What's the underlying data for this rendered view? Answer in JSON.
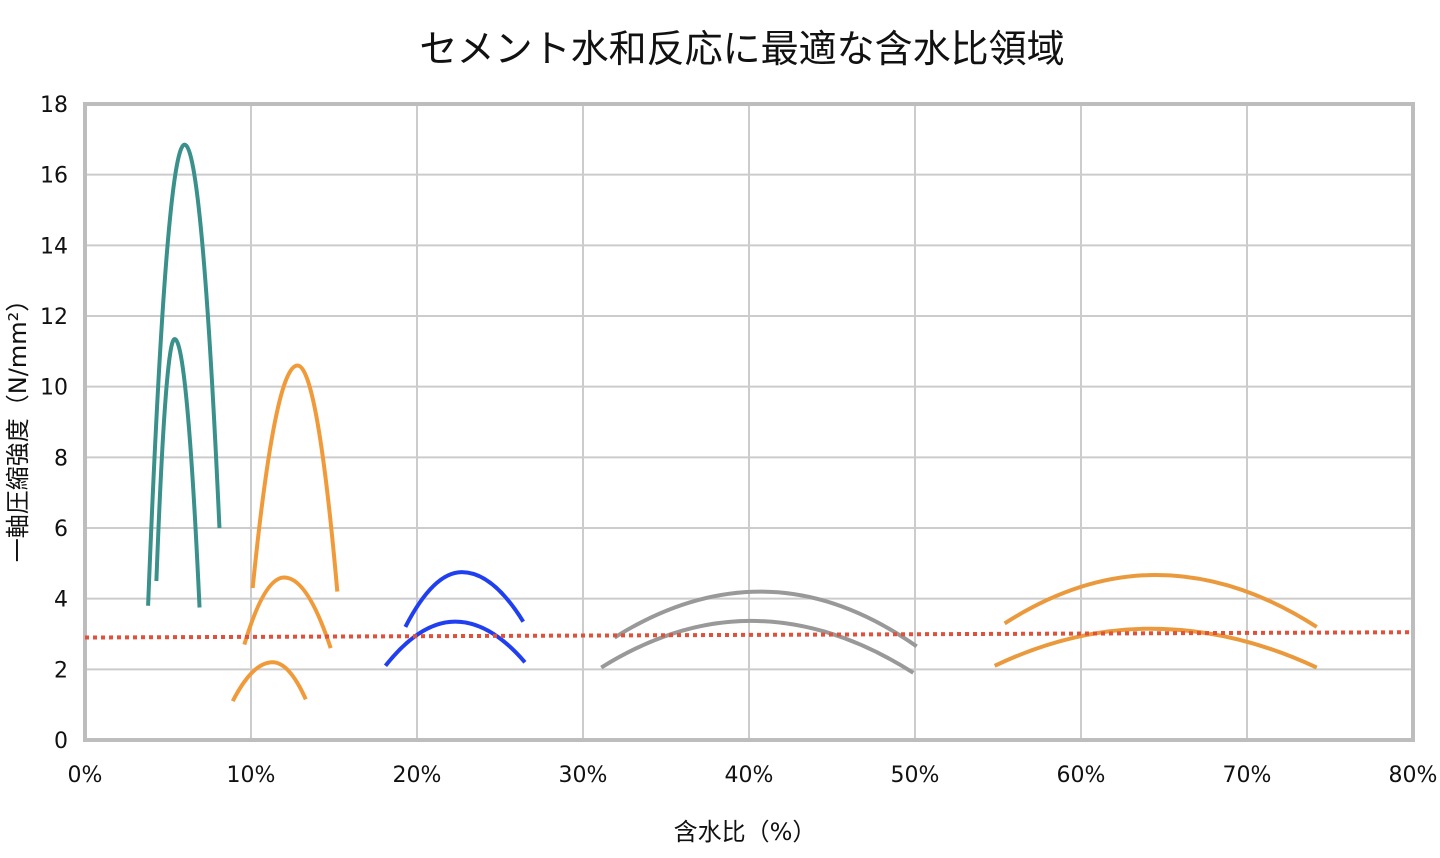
{
  "chart_data": {
    "type": "line",
    "title": "セメント水和反応に最適な含水比領域",
    "xlabel": "含水比（%）",
    "ylabel": "一軸圧縮強度（N/mm²）",
    "xlim": [
      0,
      80
    ],
    "ylim": [
      0,
      18
    ],
    "x_ticks": [
      0,
      10,
      20,
      30,
      40,
      50,
      60,
      70,
      80
    ],
    "x_tick_labels": [
      "0%",
      "10%",
      "20%",
      "30%",
      "40%",
      "50%",
      "60%",
      "70%",
      "80%"
    ],
    "y_ticks": [
      0,
      2,
      4,
      6,
      8,
      10,
      12,
      14,
      16,
      18
    ],
    "y_tick_labels": [
      "0",
      "2",
      "4",
      "6",
      "8",
      "10",
      "12",
      "14",
      "16",
      "18"
    ],
    "grid": true,
    "legend": "none",
    "series": [
      {
        "name": "teal-high",
        "color": "#3a918c",
        "points": [
          [
            3.8,
            3.8
          ],
          [
            6.0,
            16.85
          ],
          [
            8.1,
            6.0
          ]
        ]
      },
      {
        "name": "teal-low",
        "color": "#3a918c",
        "points": [
          [
            4.3,
            4.5
          ],
          [
            5.4,
            11.35
          ],
          [
            6.9,
            3.75
          ]
        ]
      },
      {
        "name": "orange-a-high",
        "color": "#f09a3a",
        "points": [
          [
            10.1,
            4.3
          ],
          [
            12.8,
            10.6
          ],
          [
            15.2,
            4.2
          ]
        ]
      },
      {
        "name": "orange-a-mid",
        "color": "#f09a3a",
        "points": [
          [
            9.6,
            2.7
          ],
          [
            12.0,
            4.6
          ],
          [
            14.8,
            2.6
          ]
        ]
      },
      {
        "name": "orange-a-low",
        "color": "#f09a3a",
        "points": [
          [
            8.9,
            1.1
          ],
          [
            11.3,
            2.2
          ],
          [
            13.3,
            1.15
          ]
        ]
      },
      {
        "name": "blue-high",
        "color": "#1f3ff0",
        "points": [
          [
            19.3,
            3.2
          ],
          [
            22.7,
            4.75
          ],
          [
            26.4,
            3.35
          ]
        ]
      },
      {
        "name": "blue-low",
        "color": "#1f3ff0",
        "points": [
          [
            18.1,
            2.1
          ],
          [
            22.3,
            3.35
          ],
          [
            26.5,
            2.2
          ]
        ]
      },
      {
        "name": "gray-high",
        "color": "#999999",
        "points": [
          [
            31.9,
            2.9
          ],
          [
            40.7,
            4.2
          ],
          [
            50.1,
            2.65
          ]
        ]
      },
      {
        "name": "gray-low",
        "color": "#999999",
        "points": [
          [
            31.1,
            2.05
          ],
          [
            40.1,
            3.37
          ],
          [
            49.9,
            1.9
          ]
        ]
      },
      {
        "name": "orange-b-high",
        "color": "#ea9a3c",
        "points": [
          [
            55.4,
            3.3
          ],
          [
            64.5,
            4.67
          ],
          [
            74.2,
            3.2
          ]
        ]
      },
      {
        "name": "orange-b-low",
        "color": "#ea9a3c",
        "points": [
          [
            54.8,
            2.1
          ],
          [
            64.2,
            3.15
          ],
          [
            74.2,
            2.05
          ]
        ]
      }
    ],
    "reference_line": {
      "name": "threshold",
      "color": "#e0503a",
      "style": "dotted",
      "points": [
        [
          0,
          2.9
        ],
        [
          80,
          3.05
        ]
      ]
    }
  }
}
